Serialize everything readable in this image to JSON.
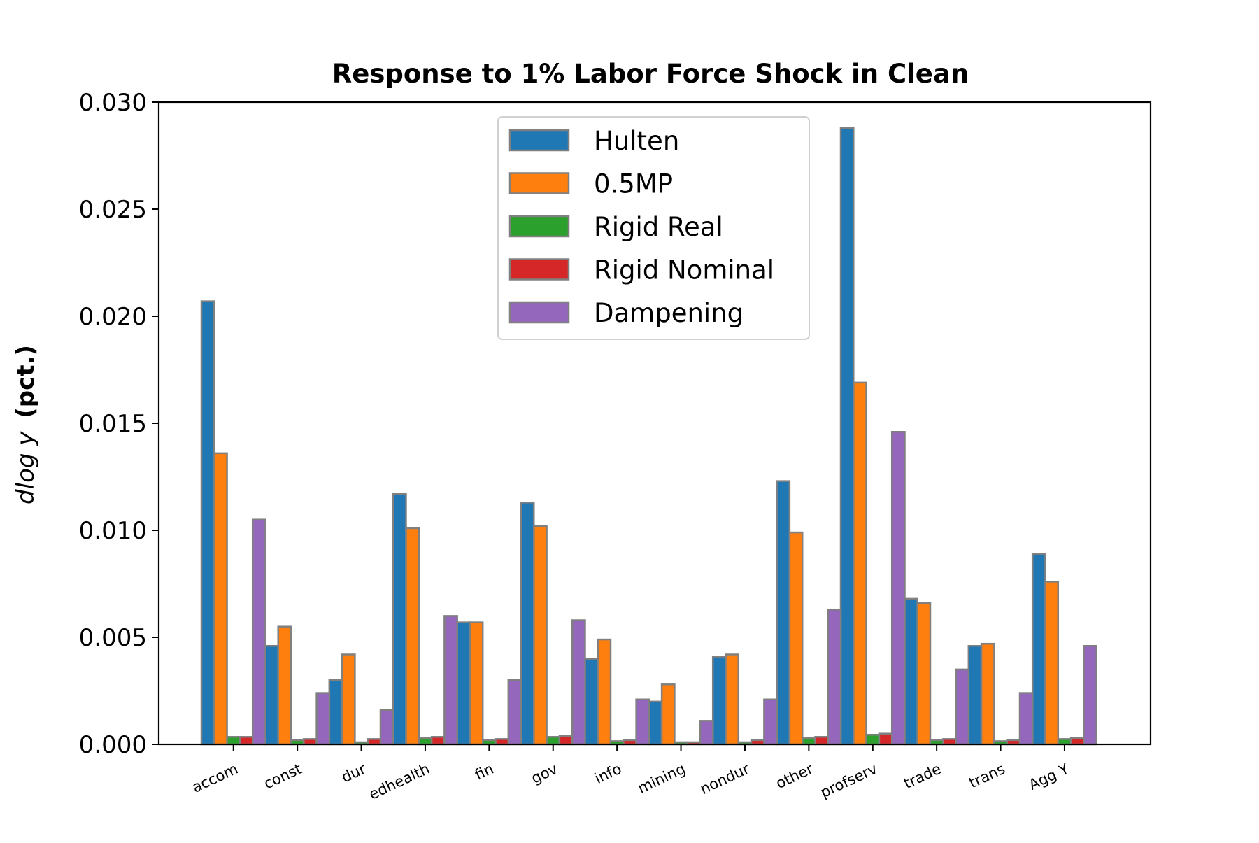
{
  "chart_data": {
    "type": "bar",
    "title": "Response to 1% Labor Force Shock in Clean",
    "ylabel_math": "dlog y",
    "ylabel_text": "(pct.)",
    "xlabel": "",
    "ylim": [
      0,
      0.03
    ],
    "yticks": [
      0.0,
      0.005,
      0.01,
      0.015,
      0.02,
      0.025,
      0.03
    ],
    "ytick_labels": [
      "0.000",
      "0.005",
      "0.010",
      "0.015",
      "0.020",
      "0.025",
      "0.030"
    ],
    "categories": [
      "accom",
      "const",
      "dur",
      "edhealth",
      "fin",
      "gov",
      "info",
      "mining",
      "nondur",
      "other",
      "profserv",
      "trade",
      "trans",
      "Agg Y"
    ],
    "series": [
      {
        "name": "Hulten",
        "color": "#1f77b4",
        "values": [
          0.0207,
          0.0046,
          0.003,
          0.0117,
          0.0057,
          0.0113,
          0.004,
          0.002,
          0.0041,
          0.0123,
          0.0288,
          0.0068,
          0.0046,
          0.0089
        ]
      },
      {
        "name": "0.5MP",
        "color": "#ff7f0e",
        "values": [
          0.0136,
          0.0055,
          0.0042,
          0.0101,
          0.0057,
          0.0102,
          0.0049,
          0.0028,
          0.0042,
          0.0099,
          0.0169,
          0.0066,
          0.0047,
          0.0076
        ]
      },
      {
        "name": "Rigid Real",
        "color": "#2ca02c",
        "values": [
          0.00035,
          0.0002,
          0.0001,
          0.0003,
          0.0002,
          0.00035,
          0.00015,
          0.0001,
          0.0001,
          0.0003,
          0.00045,
          0.0002,
          0.00015,
          0.00025
        ]
      },
      {
        "name": "Rigid Nominal",
        "color": "#d62728",
        "values": [
          0.00035,
          0.00025,
          0.00025,
          0.00035,
          0.00025,
          0.0004,
          0.0002,
          0.0001,
          0.0002,
          0.00035,
          0.0005,
          0.00025,
          0.0002,
          0.0003
        ]
      },
      {
        "name": "Dampening",
        "color": "#9467bd",
        "values": [
          0.0105,
          0.0024,
          0.0016,
          0.006,
          0.003,
          0.0058,
          0.0021,
          0.0011,
          0.0021,
          0.0063,
          0.0146,
          0.0035,
          0.0024,
          0.0046
        ]
      }
    ],
    "legend": {
      "placement": "upper-center"
    },
    "grid": false,
    "bar_edge_color": "#808080"
  }
}
